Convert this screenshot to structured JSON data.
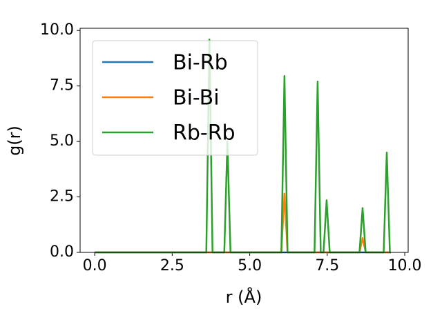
{
  "chart_data": {
    "type": "line",
    "x_label": "r (Å)",
    "y_label": "g(r)",
    "x": [
      0,
      3.6,
      3.7,
      3.8,
      4.18,
      4.28,
      4.38,
      6.02,
      6.12,
      6.22,
      7.09,
      7.19,
      7.29,
      7.38,
      7.48,
      7.58,
      8.54,
      8.64,
      8.74,
      9.32,
      9.42,
      9.52,
      9.55
    ],
    "series": [
      {
        "name": "Bi-Rb",
        "color": "#1f77b4",
        "values": [
          0,
          0,
          0,
          0,
          0,
          0,
          0,
          0,
          0,
          0,
          0,
          0,
          0,
          0,
          0,
          0,
          0,
          0,
          0,
          0,
          0,
          0,
          0
        ]
      },
      {
        "name": "Bi-Bi",
        "color": "#ff7f0e",
        "values": [
          0,
          0,
          0,
          0,
          0,
          0,
          0,
          0,
          2.65,
          0,
          0,
          0,
          0,
          0,
          0,
          0,
          0,
          0.65,
          0,
          0,
          0,
          0,
          0
        ]
      },
      {
        "name": "Rb-Rb",
        "color": "#2ca02c",
        "values": [
          0,
          0,
          9.6,
          0,
          0,
          5.0,
          0,
          0,
          7.95,
          0,
          0,
          7.7,
          0,
          0,
          2.35,
          0,
          0,
          2.0,
          0,
          0,
          4.5,
          0,
          0
        ]
      }
    ],
    "xlim": [
      -0.47,
      10.11
    ],
    "ylim": [
      0,
      10.1
    ],
    "xticks": [
      {
        "value": 0,
        "label": "0.0"
      },
      {
        "value": 2.5,
        "label": "2.5"
      },
      {
        "value": 5,
        "label": "5.0"
      },
      {
        "value": 7.5,
        "label": "7.5"
      },
      {
        "value": 10,
        "label": "10.0"
      }
    ],
    "yticks": [
      {
        "value": 0,
        "label": "0.0"
      },
      {
        "value": 2.5,
        "label": "2.5"
      },
      {
        "value": 5,
        "label": "5.0"
      },
      {
        "value": 7.5,
        "label": "7.5"
      },
      {
        "value": 10,
        "label": "10.0"
      }
    ],
    "grid": false,
    "legend": "upper-left"
  }
}
